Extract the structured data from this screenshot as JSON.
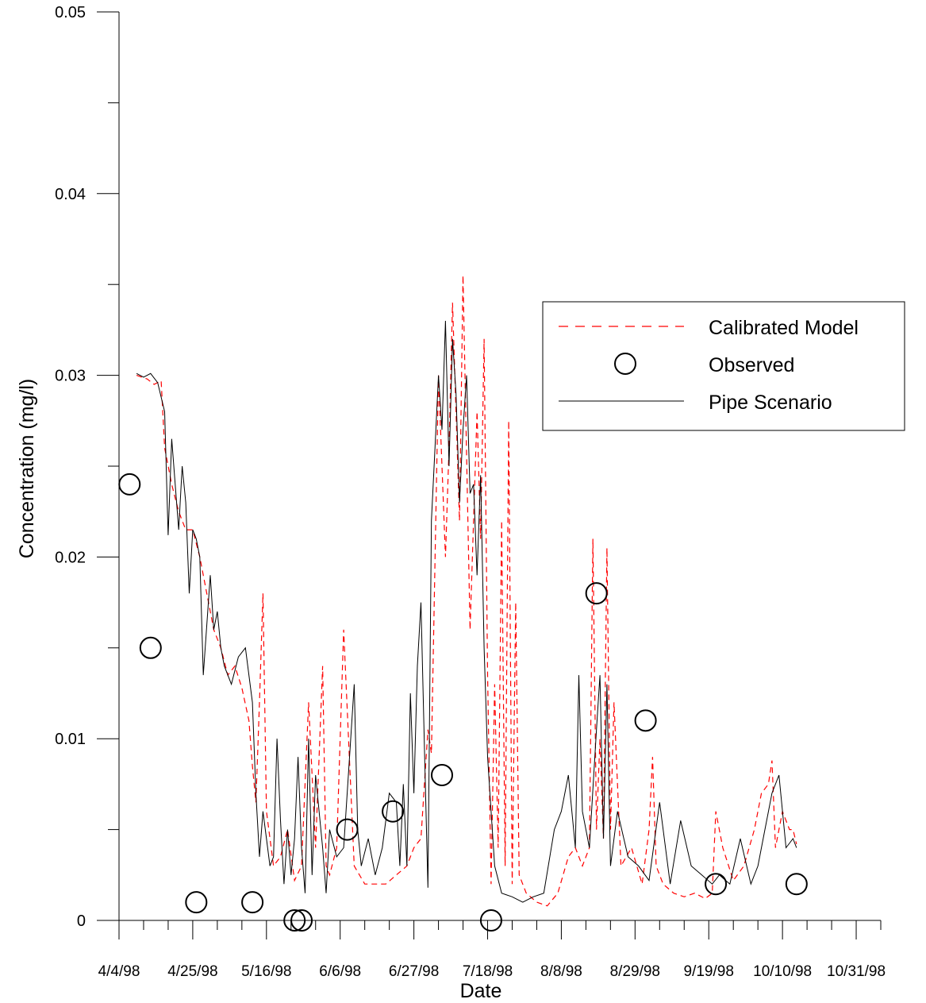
{
  "chart_data": {
    "type": "line",
    "xlabel": "Date",
    "ylabel": "Concentration (mg/l)",
    "x_ticks": [
      "4/4/98",
      "4/25/98",
      "5/16/98",
      "6/6/98",
      "6/27/98",
      "7/18/98",
      "8/8/98",
      "8/29/98",
      "9/19/98",
      "10/10/98",
      "10/31/98"
    ],
    "y_ticks": [
      "0",
      "0.01",
      "0.02",
      "0.03",
      "0.04",
      "0.05"
    ],
    "xlim": [
      "1998-04-04",
      "1998-11-07"
    ],
    "ylim": [
      0,
      0.05
    ],
    "legend_position": "right",
    "colors": {
      "calibrated": "#ff0000",
      "pipe": "#000000",
      "observed": "#000000"
    },
    "series": [
      {
        "name": "Calibrated Model",
        "style": "dashed",
        "color": "#ff0000",
        "x": [
          "1998-04-09",
          "1998-04-12",
          "1998-04-14",
          "1998-04-16",
          "1998-04-17",
          "1998-04-19",
          "1998-04-21",
          "1998-04-23",
          "1998-04-25",
          "1998-04-27",
          "1998-04-29",
          "1998-05-01",
          "1998-05-03",
          "1998-05-05",
          "1998-05-07",
          "1998-05-09",
          "1998-05-11",
          "1998-05-12",
          "1998-05-13",
          "1998-05-14",
          "1998-05-15",
          "1998-05-16",
          "1998-05-18",
          "1998-05-20",
          "1998-05-22",
          "1998-05-24",
          "1998-05-26",
          "1998-05-28",
          "1998-05-30",
          "1998-06-01",
          "1998-06-02",
          "1998-06-03",
          "1998-06-05",
          "1998-06-07",
          "1998-06-10",
          "1998-06-13",
          "1998-06-16",
          "1998-06-19",
          "1998-06-22",
          "1998-06-25",
          "1998-06-27",
          "1998-06-29",
          "1998-07-01",
          "1998-07-02",
          "1998-07-04",
          "1998-07-06",
          "1998-07-07",
          "1998-07-08",
          "1998-07-10",
          "1998-07-11",
          "1998-07-13",
          "1998-07-15",
          "1998-07-16",
          "1998-07-17",
          "1998-07-18",
          "1998-07-19",
          "1998-07-20",
          "1998-07-21",
          "1998-07-22",
          "1998-07-23",
          "1998-07-24",
          "1998-07-25",
          "1998-07-26",
          "1998-07-27",
          "1998-07-29",
          "1998-08-01",
          "1998-08-04",
          "1998-08-07",
          "1998-08-10",
          "1998-08-12",
          "1998-08-14",
          "1998-08-16",
          "1998-08-17",
          "1998-08-18",
          "1998-08-19",
          "1998-08-20",
          "1998-08-21",
          "1998-08-22",
          "1998-08-23",
          "1998-08-25",
          "1998-08-28",
          "1998-08-31",
          "1998-09-02",
          "1998-09-03",
          "1998-09-04",
          "1998-09-06",
          "1998-09-09",
          "1998-09-12",
          "1998-09-15",
          "1998-09-18",
          "1998-09-20",
          "1998-09-21",
          "1998-09-23",
          "1998-09-26",
          "1998-09-29",
          "1998-10-02",
          "1998-10-04",
          "1998-10-06",
          "1998-10-07",
          "1998-10-08",
          "1998-10-10",
          "1998-10-12",
          "1998-10-13",
          "1998-10-14"
        ],
        "y": [
          0.03,
          0.0298,
          0.0295,
          0.0297,
          0.026,
          0.024,
          0.0225,
          0.0215,
          0.0215,
          0.02,
          0.018,
          0.016,
          0.015,
          0.0135,
          0.014,
          0.0128,
          0.011,
          0.0085,
          0.0065,
          0.012,
          0.018,
          0.006,
          0.003,
          0.0035,
          0.005,
          0.0022,
          0.003,
          0.012,
          0.004,
          0.014,
          0.003,
          0.0025,
          0.004,
          0.016,
          0.003,
          0.002,
          0.002,
          0.002,
          0.0025,
          0.003,
          0.004,
          0.0045,
          0.0105,
          0.0092,
          0.03,
          0.02,
          0.026,
          0.034,
          0.022,
          0.0355,
          0.016,
          0.028,
          0.021,
          0.032,
          0.0135,
          0.002,
          0.013,
          0.004,
          0.022,
          0.003,
          0.0275,
          0.002,
          0.0175,
          0.0025,
          0.0015,
          0.001,
          0.0008,
          0.0015,
          0.0035,
          0.004,
          0.003,
          0.004,
          0.021,
          0.005,
          0.01,
          0.0045,
          0.0205,
          0.005,
          0.012,
          0.003,
          0.004,
          0.002,
          0.005,
          0.009,
          0.003,
          0.002,
          0.0015,
          0.0013,
          0.0015,
          0.0012,
          0.0015,
          0.006,
          0.004,
          0.0022,
          0.003,
          0.005,
          0.007,
          0.0075,
          0.0088,
          0.004,
          0.006,
          0.005,
          0.005,
          0.0042
        ]
      },
      {
        "name": "Observed",
        "style": "circle-markers",
        "color": "#000000",
        "x": [
          "1998-04-07",
          "1998-04-13",
          "1998-04-26",
          "1998-05-12",
          "1998-05-24",
          "1998-05-26",
          "1998-06-08",
          "1998-06-21",
          "1998-07-05",
          "1998-07-19",
          "1998-08-18",
          "1998-09-01",
          "1998-09-21",
          "1998-10-14"
        ],
        "y": [
          0.024,
          0.015,
          0.001,
          0.001,
          0.0,
          0.0,
          0.005,
          0.006,
          0.008,
          0.0,
          0.018,
          0.011,
          0.002,
          0.002
        ]
      },
      {
        "name": "Pipe Scenario",
        "style": "solid",
        "color": "#000000",
        "x": [
          "1998-04-09",
          "1998-04-11",
          "1998-04-13",
          "1998-04-15",
          "1998-04-17",
          "1998-04-18",
          "1998-04-19",
          "1998-04-20",
          "1998-04-21",
          "1998-04-22",
          "1998-04-23",
          "1998-04-24",
          "1998-04-25",
          "1998-04-26",
          "1998-04-27",
          "1998-04-28",
          "1998-04-30",
          "1998-05-01",
          "1998-05-02",
          "1998-05-03",
          "1998-05-04",
          "1998-05-06",
          "1998-05-08",
          "1998-05-10",
          "1998-05-12",
          "1998-05-13",
          "1998-05-14",
          "1998-05-15",
          "1998-05-16",
          "1998-05-17",
          "1998-05-18",
          "1998-05-19",
          "1998-05-20",
          "1998-05-21",
          "1998-05-22",
          "1998-05-23",
          "1998-05-24",
          "1998-05-25",
          "1998-05-26",
          "1998-05-27",
          "1998-05-28",
          "1998-05-29",
          "1998-05-30",
          "1998-06-01",
          "1998-06-02",
          "1998-06-03",
          "1998-06-05",
          "1998-06-07",
          "1998-06-09",
          "1998-06-10",
          "1998-06-11",
          "1998-06-12",
          "1998-06-14",
          "1998-06-16",
          "1998-06-18",
          "1998-06-20",
          "1998-06-22",
          "1998-06-23",
          "1998-06-24",
          "1998-06-25",
          "1998-06-26",
          "1998-06-27",
          "1998-06-28",
          "1998-06-29",
          "1998-06-30",
          "1998-07-01",
          "1998-07-02",
          "1998-07-03",
          "1998-07-04",
          "1998-07-05",
          "1998-07-06",
          "1998-07-07",
          "1998-07-08",
          "1998-07-09",
          "1998-07-10",
          "1998-07-11",
          "1998-07-12",
          "1998-07-13",
          "1998-07-14",
          "1998-07-15",
          "1998-07-16",
          "1998-07-17",
          "1998-07-18",
          "1998-07-19",
          "1998-07-20",
          "1998-07-22",
          "1998-07-25",
          "1998-07-28",
          "1998-07-31",
          "1998-08-03",
          "1998-08-06",
          "1998-08-08",
          "1998-08-10",
          "1998-08-12",
          "1998-08-13",
          "1998-08-14",
          "1998-08-16",
          "1998-08-18",
          "1998-08-19",
          "1998-08-20",
          "1998-08-21",
          "1998-08-22",
          "1998-08-24",
          "1998-08-27",
          "1998-08-30",
          "1998-09-02",
          "1998-09-05",
          "1998-09-08",
          "1998-09-11",
          "1998-09-14",
          "1998-09-17",
          "1998-09-20",
          "1998-09-22",
          "1998-09-25",
          "1998-09-28",
          "1998-10-01",
          "1998-10-03",
          "1998-10-05",
          "1998-10-07",
          "1998-10-09",
          "1998-10-11",
          "1998-10-13",
          "1998-10-14"
        ],
        "y": [
          0.0301,
          0.0299,
          0.0301,
          0.0296,
          0.028,
          0.0212,
          0.0265,
          0.024,
          0.0215,
          0.025,
          0.023,
          0.018,
          0.0215,
          0.021,
          0.02,
          0.0135,
          0.019,
          0.016,
          0.017,
          0.015,
          0.014,
          0.013,
          0.0145,
          0.015,
          0.012,
          0.007,
          0.0035,
          0.006,
          0.0045,
          0.003,
          0.0035,
          0.01,
          0.0055,
          0.002,
          0.005,
          0.0025,
          0.0045,
          0.009,
          0.004,
          0.0015,
          0.01,
          0.0025,
          0.008,
          0.004,
          0.0015,
          0.005,
          0.0035,
          0.004,
          0.01,
          0.013,
          0.005,
          0.003,
          0.0045,
          0.0025,
          0.004,
          0.007,
          0.0065,
          0.003,
          0.0075,
          0.003,
          0.0125,
          0.007,
          0.014,
          0.0175,
          0.0095,
          0.0018,
          0.022,
          0.026,
          0.03,
          0.027,
          0.033,
          0.025,
          0.032,
          0.029,
          0.023,
          0.027,
          0.03,
          0.0235,
          0.024,
          0.019,
          0.0245,
          0.015,
          0.009,
          0.006,
          0.003,
          0.0015,
          0.0013,
          0.001,
          0.0013,
          0.0015,
          0.005,
          0.006,
          0.008,
          0.004,
          0.0135,
          0.006,
          0.004,
          0.0105,
          0.0135,
          0.0045,
          0.013,
          0.003,
          0.006,
          0.0035,
          0.003,
          0.0022,
          0.0065,
          0.002,
          0.0055,
          0.003,
          0.0025,
          0.002,
          0.0025,
          0.002,
          0.0045,
          0.002,
          0.003,
          0.005,
          0.007,
          0.008,
          0.004,
          0.0045,
          0.004
        ]
      }
    ]
  }
}
